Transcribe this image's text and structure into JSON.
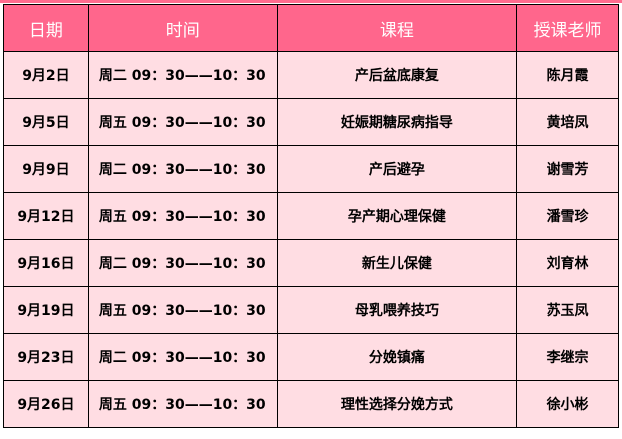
{
  "table": {
    "headers": [
      "日期",
      "时间",
      "课程",
      "授课老师"
    ],
    "rows": [
      [
        "9月2日",
        "周二 09：30——10：30",
        "产后盆底康复",
        "陈月霞"
      ],
      [
        "9月5日",
        "周五 09：30——10：30",
        "妊娠期糖尿病指导",
        "黄培凤"
      ],
      [
        "9月9日",
        "周二 09：30——10：30",
        "产后避孕",
        "谢雪芳"
      ],
      [
        "9月12日",
        "周五 09：30——10：30",
        "孕产期心理保健",
        "潘雪珍"
      ],
      [
        "9月16日",
        "周二 09：30——10：30",
        "新生儿保健",
        "刘育林"
      ],
      [
        "9月19日",
        "周五 09：30——10：30",
        "母乳喂养技巧",
        "苏玉凤"
      ],
      [
        "9月23日",
        "周二 09：30——10：30",
        "分娩镇痛",
        "李继宗"
      ],
      [
        "9月26日",
        "周五 09：30——10：30",
        "理性选择分娩方式",
        "徐小彬"
      ]
    ]
  },
  "colors": {
    "header_bg": "#ff668c",
    "row_bg": "#ffdde3",
    "border": "#000000"
  }
}
